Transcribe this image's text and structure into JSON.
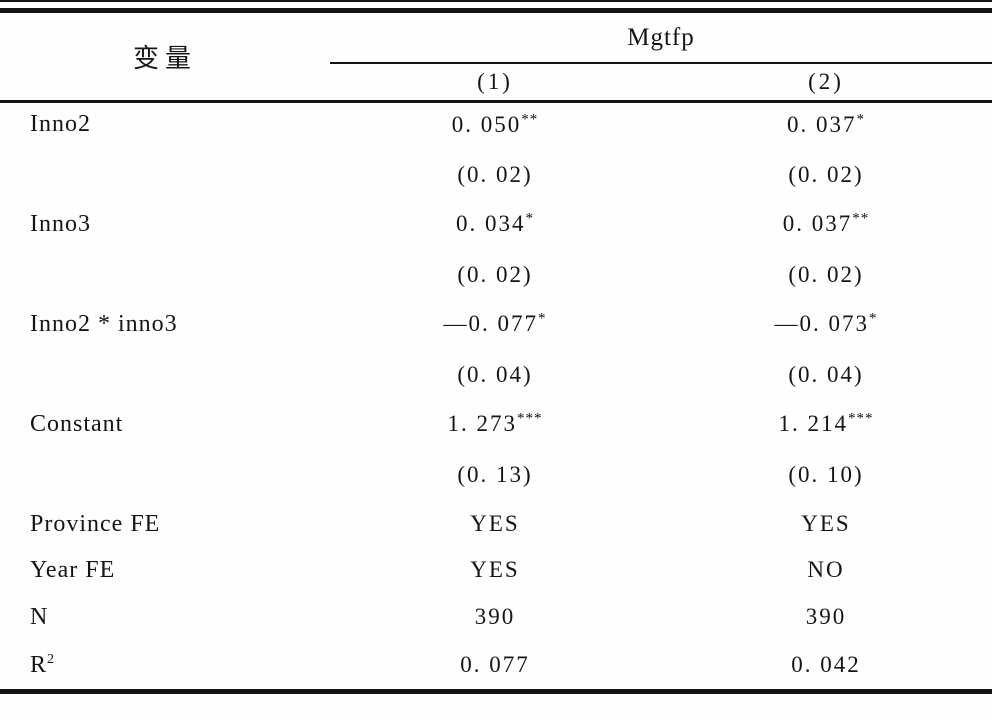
{
  "header": {
    "variable_label": "变量",
    "group_label": "Mgtfp",
    "col1": "(1)",
    "col2": "(2)"
  },
  "rows": [
    {
      "label": "Inno2",
      "c1": "0. 050",
      "c1sup": "**",
      "c2": "0. 037",
      "c2sup": "*"
    },
    {
      "label": "",
      "c1": "(0. 02)",
      "c1sup": "",
      "c2": "(0. 02)",
      "c2sup": ""
    },
    {
      "label": "Inno3",
      "c1": "0. 034",
      "c1sup": "*",
      "c2": "0. 037",
      "c2sup": "**"
    },
    {
      "label": "",
      "c1": "(0. 02)",
      "c1sup": "",
      "c2": "(0. 02)",
      "c2sup": ""
    },
    {
      "label": "Inno2 * inno3",
      "c1": "—0. 077",
      "c1sup": "*",
      "c2": "—0. 073",
      "c2sup": "*"
    },
    {
      "label": "",
      "c1": "(0. 04)",
      "c1sup": "",
      "c2": "(0. 04)",
      "c2sup": ""
    },
    {
      "label": "Constant",
      "c1": "1. 273",
      "c1sup": "***",
      "c2": "1. 214",
      "c2sup": "***"
    },
    {
      "label": "",
      "c1": "(0. 13)",
      "c1sup": "",
      "c2": "(0. 10)",
      "c2sup": ""
    },
    {
      "label": "Province FE",
      "c1": "YES",
      "c2": "YES"
    },
    {
      "label": "Year FE",
      "c1": "YES",
      "c2": "NO"
    },
    {
      "label": "N",
      "c1": "390",
      "c2": "390"
    },
    {
      "label": "R",
      "label_sup": "2",
      "c1": "0. 077",
      "c2": "0. 042"
    }
  ]
}
